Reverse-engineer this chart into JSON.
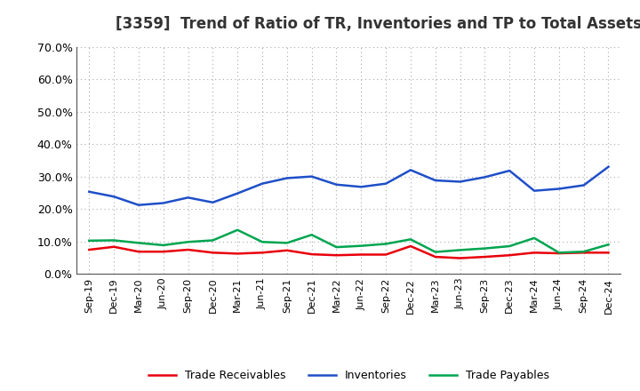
{
  "title": "[3359]  Trend of Ratio of TR, Inventories and TP to Total Assets",
  "x_labels": [
    "Sep-19",
    "Dec-19",
    "Mar-20",
    "Jun-20",
    "Sep-20",
    "Dec-20",
    "Mar-21",
    "Jun-21",
    "Sep-21",
    "Dec-21",
    "Mar-22",
    "Jun-22",
    "Sep-22",
    "Dec-22",
    "Mar-23",
    "Jun-23",
    "Sep-23",
    "Dec-23",
    "Mar-24",
    "Jun-24",
    "Sep-24",
    "Dec-24"
  ],
  "trade_receivables": [
    0.074,
    0.083,
    0.068,
    0.068,
    0.074,
    0.065,
    0.062,
    0.065,
    0.072,
    0.06,
    0.057,
    0.059,
    0.059,
    0.085,
    0.052,
    0.048,
    0.052,
    0.057,
    0.065,
    0.063,
    0.065,
    0.065
  ],
  "inventories": [
    0.253,
    0.238,
    0.212,
    0.218,
    0.235,
    0.22,
    0.248,
    0.278,
    0.295,
    0.3,
    0.275,
    0.268,
    0.278,
    0.32,
    0.288,
    0.284,
    0.298,
    0.318,
    0.256,
    0.262,
    0.273,
    0.33
  ],
  "trade_payables": [
    0.102,
    0.103,
    0.095,
    0.088,
    0.098,
    0.103,
    0.135,
    0.098,
    0.095,
    0.12,
    0.082,
    0.086,
    0.092,
    0.106,
    0.067,
    0.073,
    0.078,
    0.085,
    0.11,
    0.065,
    0.068,
    0.09
  ],
  "line_colors": {
    "trade_receivables": "#e8000b",
    "inventories": "#1f4fc8",
    "trade_payables": "#00a550"
  },
  "line_width": 1.8,
  "ylim": [
    0.0,
    0.7
  ],
  "yticks": [
    0.0,
    0.1,
    0.2,
    0.3,
    0.4,
    0.5,
    0.6,
    0.7
  ],
  "background_color": "#ffffff",
  "plot_bg_color": "#ffffff",
  "grid_color": "#aaaaaa",
  "title_fontsize": 12,
  "legend_labels": [
    "Trade Receivables",
    "Inventories",
    "Trade Payables"
  ]
}
